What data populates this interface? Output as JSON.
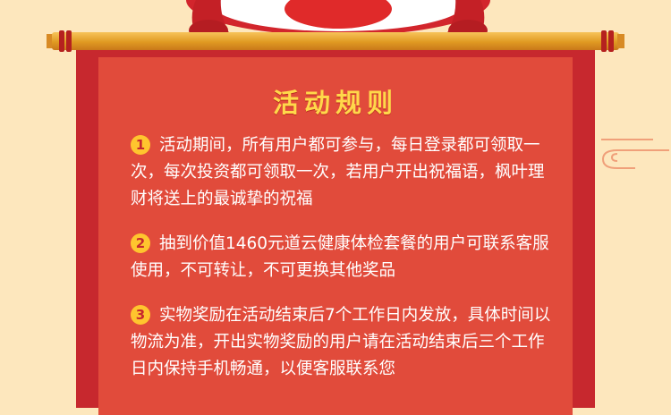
{
  "title": "活动规则",
  "rules": [
    {
      "num": "1",
      "text": "活动期间，所有用户都可参与，每日登录都可领取一次，每次投资都可领取一次，若用户开出祝福语，枫叶理财将送上的最诚挚的祝福"
    },
    {
      "num": "2",
      "text": "抽到价值1460元道云健康体检套餐的用户可联系客服使用，不可转让，不可更换其他奖品"
    },
    {
      "num": "3",
      "text": "实物奖励在活动结束后7个工作日内发放，具体时间以物流为准，开出实物奖励的用户请在活动结束后三个工作日内保持手机畅通，以便客服联系您"
    }
  ],
  "colors": {
    "background": "#fde7bd",
    "board": "#c7282e",
    "panel": "#e14b3b",
    "title": "#ffd84a",
    "badge": "#ffc52e"
  },
  "icons": [
    "lion-head-icon",
    "cloud-swirl-icon"
  ]
}
